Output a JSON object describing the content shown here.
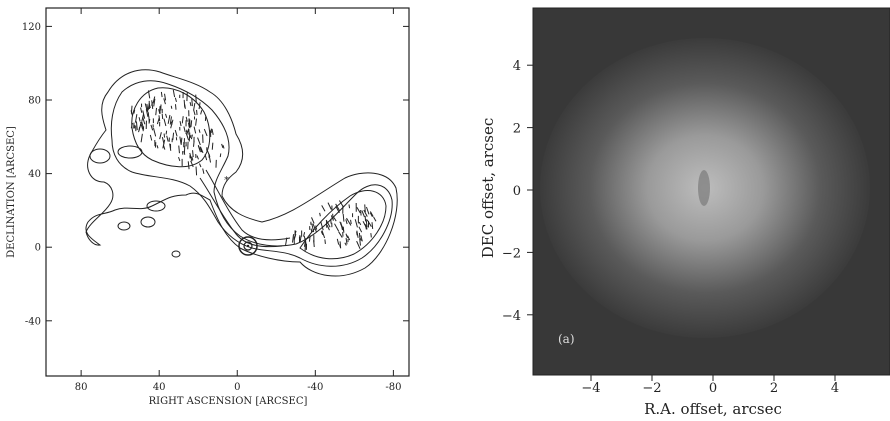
{
  "left_panel": {
    "xlabel": "RIGHT ASCENSION [ARCSEC]",
    "ylabel": "DECLINATION [ARCSEC]",
    "x_ticks": [
      "80",
      "40",
      "0",
      "-40",
      "-80"
    ],
    "y_ticks": [
      "120",
      "80",
      "40",
      "0",
      "-40"
    ]
  },
  "right_panel": {
    "xlabel": "R.A. offset, arcsec",
    "ylabel": "DEC offset, arcsec",
    "x_ticks": [
      "−4",
      "−2",
      "0",
      "2",
      "4"
    ],
    "y_ticks": [
      "4",
      "2",
      "0",
      "−2",
      "−4"
    ],
    "panel_label": "(a)"
  },
  "chart_data": [
    {
      "type": "contour",
      "xlabel": "RIGHT ASCENSION [ARCSEC]",
      "ylabel": "DECLINATION [ARCSEC]",
      "xlim": [
        98,
        -88
      ],
      "ylim": [
        -70,
        130
      ],
      "x_ticks": [
        80,
        40,
        0,
        -40,
        -80
      ],
      "y_ticks": [
        120,
        80,
        40,
        0,
        -40
      ]
    },
    {
      "type": "heatmap",
      "xlabel": "R.A. offset, arcsec",
      "ylabel": "DEC offset, arcsec",
      "xlim": [
        -6,
        6
      ],
      "ylim": [
        -6,
        6
      ],
      "x_ticks": [
        -4,
        -2,
        0,
        2,
        4
      ],
      "y_ticks": [
        4,
        2,
        0,
        -2,
        -4
      ]
    }
  ]
}
